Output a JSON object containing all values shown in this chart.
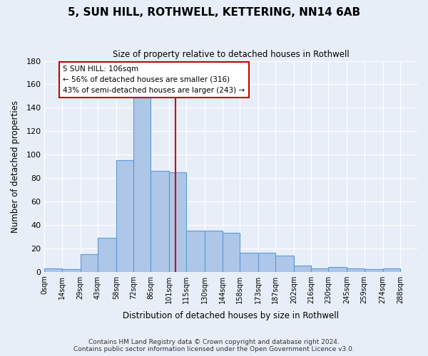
{
  "title": "5, SUN HILL, ROTHWELL, KETTERING, NN14 6AB",
  "subtitle": "Size of property relative to detached houses in Rothwell",
  "xlabel": "Distribution of detached houses by size in Rothwell",
  "ylabel": "Number of detached properties",
  "footnote1": "Contains HM Land Registry data © Crown copyright and database right 2024.",
  "footnote2": "Contains public sector information licensed under the Open Government Licence v3.0.",
  "annotation_line1": "5 SUN HILL: 106sqm",
  "annotation_line2": "← 56% of detached houses are smaller (316)",
  "annotation_line3": "43% of semi-detached houses are larger (243) →",
  "property_value": 106,
  "bar_edges": [
    0,
    14,
    29,
    43,
    58,
    72,
    86,
    101,
    115,
    130,
    144,
    158,
    173,
    187,
    202,
    216,
    230,
    245,
    259,
    274,
    288
  ],
  "bar_heights": [
    3,
    2,
    15,
    29,
    95,
    150,
    86,
    85,
    35,
    35,
    33,
    16,
    16,
    14,
    5,
    3,
    4,
    3,
    2,
    3
  ],
  "bar_color": "#aec6e8",
  "bar_edge_color": "#5b9bd5",
  "vline_color": "#cc0000",
  "vline_x": 106,
  "annotation_box_color": "#ffffff",
  "annotation_box_edge_color": "#cc0000",
  "background_color": "#e8eef7",
  "grid_color": "#ffffff",
  "ylim": [
    0,
    180
  ],
  "xlim": [
    0,
    302
  ],
  "yticks": [
    0,
    20,
    40,
    60,
    80,
    100,
    120,
    140,
    160,
    180
  ],
  "tick_labels": [
    "0sqm",
    "14sqm",
    "29sqm",
    "43sqm",
    "58sqm",
    "72sqm",
    "86sqm",
    "101sqm",
    "115sqm",
    "130sqm",
    "144sqm",
    "158sqm",
    "173sqm",
    "187sqm",
    "202sqm",
    "216sqm",
    "230sqm",
    "245sqm",
    "259sqm",
    "274sqm",
    "288sqm"
  ]
}
